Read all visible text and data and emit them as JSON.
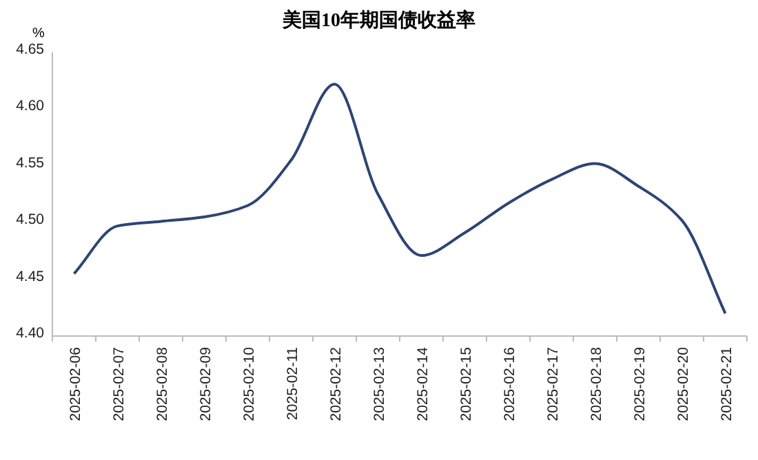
{
  "chart_data": {
    "type": "line",
    "title": "美国10年期国债收益率",
    "ylabel": "%",
    "categories": [
      "2025-02-06",
      "2025-02-07",
      "2025-02-08",
      "2025-02-09",
      "2025-02-10",
      "2025-02-11",
      "2025-02-12",
      "2025-02-13",
      "2025-02-14",
      "2025-02-15",
      "2025-02-16",
      "2025-02-17",
      "2025-02-18",
      "2025-02-19",
      "2025-02-20",
      "2025-02-21"
    ],
    "series": [
      {
        "color": "#2e4474",
        "values": [
          4.455,
          4.497,
          4.501,
          4.505,
          4.515,
          4.555,
          4.622,
          4.525,
          4.471,
          4.491,
          4.517,
          4.538,
          4.552,
          4.532,
          4.502,
          4.42
        ]
      }
    ],
    "ylim": [
      4.4,
      4.65
    ],
    "yticks": [
      {
        "value": 4.4,
        "label": "4.40"
      },
      {
        "value": 4.45,
        "label": "4.45"
      },
      {
        "value": 4.5,
        "label": "4.50"
      },
      {
        "value": 4.55,
        "label": "4.55"
      },
      {
        "value": 4.6,
        "label": "4.60"
      },
      {
        "value": 4.65,
        "label": "4.65"
      }
    ],
    "marker": "none"
  }
}
